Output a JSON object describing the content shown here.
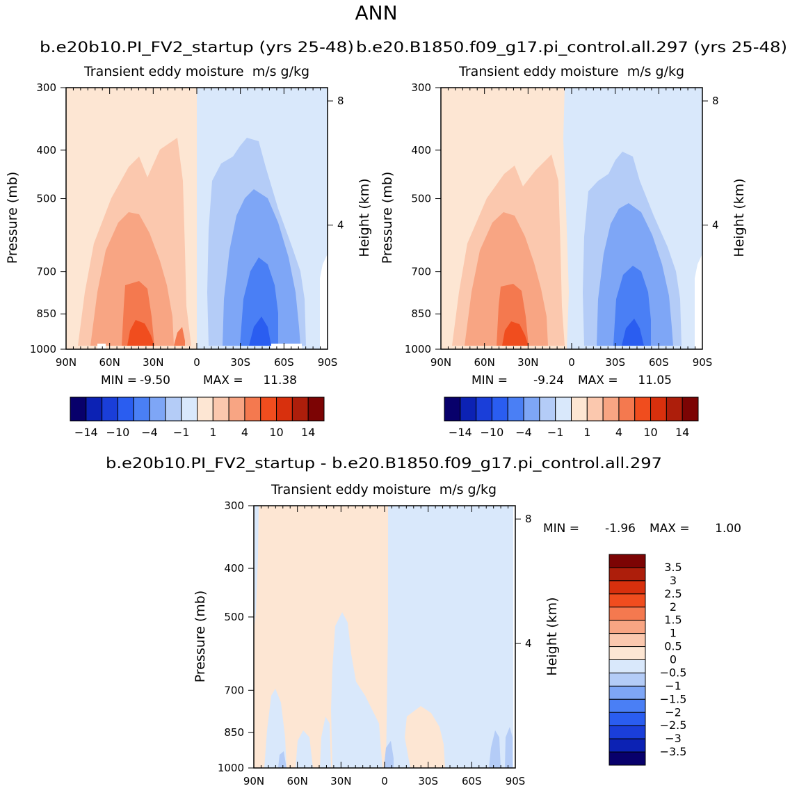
{
  "figure": {
    "title": "ANN"
  },
  "colors": {
    "main_levels": [
      -14,
      -12,
      -10,
      -8,
      -6,
      -4,
      -2,
      -1,
      0,
      1,
      2,
      4,
      6,
      8,
      10,
      12,
      14
    ],
    "main_palette": [
      "#08006b",
      "#0c22b4",
      "#1a3ed9",
      "#2a5df0",
      "#4a7ff5",
      "#7ea6f6",
      "#b4ccf7",
      "#d9e8fb",
      "#fde6d3",
      "#fbc8ae",
      "#f8a583",
      "#f4794f",
      "#f04d1e",
      "#d8300d",
      "#ad1e0b",
      "#7c0404"
    ],
    "diff_levels": [
      -3.5,
      -3,
      -2.5,
      -2,
      -1.5,
      -1,
      -0.5,
      0,
      0.5,
      1,
      1.5,
      2,
      2.5,
      3,
      3.5
    ],
    "diff_palette": [
      "#08006b",
      "#0c22b4",
      "#1a3ed9",
      "#2a5df0",
      "#4a7ff5",
      "#7ea6f6",
      "#b4ccf7",
      "#d9e8fb",
      "#fde6d3",
      "#fbc8ae",
      "#f8a583",
      "#f4794f",
      "#f04d1e",
      "#d8300d",
      "#ad1e0b",
      "#7c0404"
    ]
  },
  "chart_data": [
    {
      "type": "heatmap",
      "case_title": "b.e20b10.PI_FV2_startup (yrs 25-48)",
      "title": "Transient eddy moisture",
      "units": "m/s g/kg",
      "xlabel": "",
      "ylabel": "Pressure (mb)",
      "ylabel_right": "Height (km)",
      "x_ticks": [
        "90N",
        "60N",
        "30N",
        "0",
        "30S",
        "60S",
        "90S"
      ],
      "y_ticks": [
        300,
        400,
        500,
        700,
        850,
        1000
      ],
      "y_ticks_right": [
        8,
        4
      ],
      "ylim": [
        1000,
        300
      ],
      "min_label": "MIN =",
      "min": "-9.50",
      "max_label": "MAX =",
      "max": "11.38",
      "colorbar_labels": [
        "-14",
        "-10",
        "-4",
        "-1",
        "1",
        "4",
        "10",
        "14"
      ],
      "description_of_field": "Positive northward eddy moisture flux in the northern hemisphere peaking near 40N at the surface, negative in the southern hemisphere peaking near 45S near the surface."
    },
    {
      "type": "heatmap",
      "case_title": "b.e20.B1850.f09_g17.pi_control.all.297 (yrs 25-48)",
      "title": "Transient eddy moisture",
      "units": "m/s g/kg",
      "xlabel": "",
      "ylabel": "Pressure (mb)",
      "ylabel_right": "Height (km)",
      "x_ticks": [
        "90N",
        "60N",
        "30N",
        "0",
        "30S",
        "60S",
        "90S"
      ],
      "y_ticks": [
        300,
        400,
        500,
        700,
        850,
        1000
      ],
      "y_ticks_right": [
        8,
        4
      ],
      "ylim": [
        1000,
        300
      ],
      "min_label": "MIN =",
      "min": "-9.24",
      "max_label": "MAX =",
      "max": "11.05",
      "colorbar_labels": [
        "-14",
        "-10",
        "-4",
        "-1",
        "1",
        "4",
        "10",
        "14"
      ]
    },
    {
      "type": "heatmap",
      "case_title": "b.e20b10.PI_FV2_startup - b.e20.B1850.f09_g17.pi_control.all.297",
      "title": "Transient eddy moisture",
      "units": "m/s g/kg",
      "xlabel": "",
      "ylabel": "Pressure (mb)",
      "ylabel_right": "Height (km)",
      "x_ticks": [
        "90N",
        "60N",
        "30N",
        "0",
        "30S",
        "60S",
        "90S"
      ],
      "y_ticks": [
        300,
        400,
        500,
        700,
        850,
        1000
      ],
      "y_ticks_right": [
        8,
        4
      ],
      "ylim": [
        1000,
        300
      ],
      "min_label": "MIN =",
      "min": "-1.96",
      "max_label": "MAX =",
      "max": "1.00",
      "colorbar_labels": [
        "3.5",
        "3",
        "2.5",
        "2",
        "1.5",
        "1",
        "0.5",
        "0",
        "-0.5",
        "-1",
        "-1.5",
        "-2",
        "-2.5",
        "-3",
        "-3.5"
      ]
    }
  ]
}
